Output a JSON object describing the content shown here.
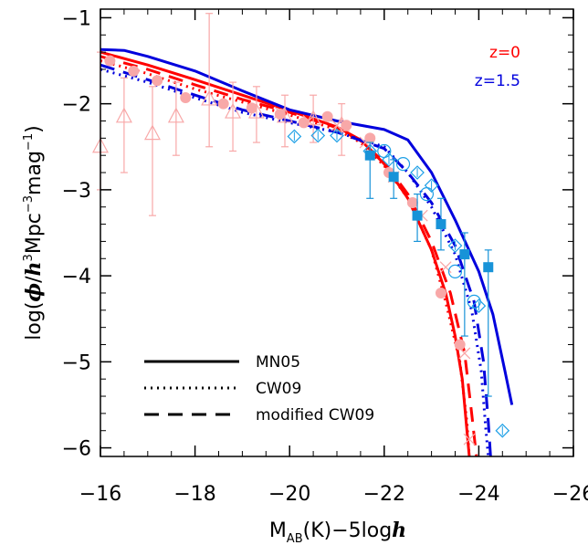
{
  "chart_data": {
    "type": "line",
    "xlabel_parts": {
      "base": "M",
      "sub": "AB",
      "rest": "(K)−5log",
      "italic": "h"
    },
    "ylabel_parts": {
      "pre": "log(",
      "phi": "ϕ",
      "slash": "/",
      "h": "h",
      "mid": "Mpc",
      "mag": "mag",
      "close": ")"
    },
    "xlim": [
      -16,
      -26
    ],
    "ylim": [
      -6.1,
      -0.9
    ],
    "xticks": [
      -16,
      -18,
      -20,
      -22,
      -24,
      -26
    ],
    "yticks": [
      -1,
      -2,
      -3,
      -4,
      -5,
      -6
    ],
    "xtick_labels": [
      "−16",
      "−18",
      "−20",
      "−22",
      "−24",
      "−26"
    ],
    "ytick_labels": [
      "−1",
      "−2",
      "−3",
      "−4",
      "−5",
      "−6"
    ],
    "redshift_labels": [
      {
        "text": "z=0",
        "color": "#ff0000"
      },
      {
        "text": "z=1.5",
        "color": "#0000dd"
      }
    ],
    "legend": [
      {
        "label": "MN05",
        "style": "solid"
      },
      {
        "label": "CW09",
        "style": "dotted"
      },
      {
        "label": "modified CW09",
        "style": "dashed"
      }
    ],
    "colors": {
      "z0_model": "#ff0000",
      "z15_model": "#0000dd",
      "z0_obs": "#f8a8a8",
      "z15_obs": "#1fa0e6",
      "z15_obs_dark": "#1893d8"
    },
    "series": [
      {
        "z": "0",
        "model": "MN05",
        "style": "solid",
        "x": [
          -16,
          -17,
          -18,
          -19,
          -20,
          -21,
          -21.5,
          -22,
          -22.5,
          -23,
          -23.3,
          -23.5,
          -23.65,
          -23.75,
          -23.8
        ],
        "y": [
          -1.4,
          -1.55,
          -1.72,
          -1.9,
          -2.08,
          -2.27,
          -2.42,
          -2.7,
          -3.1,
          -3.7,
          -4.2,
          -4.7,
          -5.2,
          -5.8,
          -6.1
        ]
      },
      {
        "z": "0",
        "model": "CW09",
        "style": "dotted",
        "x": [
          -16,
          -17,
          -18,
          -19,
          -20,
          -21,
          -21.5,
          -22,
          -22.5,
          -23,
          -23.3,
          -23.6,
          -23.75,
          -23.8
        ],
        "y": [
          -1.5,
          -1.65,
          -1.83,
          -1.98,
          -2.13,
          -2.3,
          -2.45,
          -2.72,
          -3.1,
          -3.7,
          -4.3,
          -5.0,
          -5.7,
          -6.1
        ]
      },
      {
        "z": "0",
        "model": "modified CW09",
        "style": "dashed",
        "x": [
          -16,
          -17,
          -18,
          -19,
          -20,
          -21,
          -21.5,
          -22,
          -22.5,
          -23,
          -23.4,
          -23.7,
          -23.85,
          -23.95
        ],
        "y": [
          -1.45,
          -1.6,
          -1.78,
          -1.95,
          -2.1,
          -2.28,
          -2.43,
          -2.68,
          -3.05,
          -3.6,
          -4.2,
          -4.9,
          -5.6,
          -6.1
        ]
      },
      {
        "z": "1.5",
        "model": "MN05",
        "style": "solid",
        "x": [
          -16,
          -16.5,
          -17,
          -18,
          -19,
          -20,
          -21,
          -22,
          -22.5,
          -23,
          -23.5,
          -24,
          -24.3,
          -24.55,
          -24.7
        ],
        "y": [
          -1.37,
          -1.38,
          -1.45,
          -1.62,
          -1.85,
          -2.07,
          -2.2,
          -2.3,
          -2.42,
          -2.8,
          -3.35,
          -3.95,
          -4.45,
          -5.1,
          -5.5
        ]
      },
      {
        "z": "1.5",
        "model": "CW09",
        "style": "dotted",
        "x": [
          -16,
          -17,
          -18,
          -19,
          -20,
          -21,
          -22,
          -22.5,
          -23,
          -23.5,
          -23.85,
          -24.05,
          -24.15,
          -24.2
        ],
        "y": [
          -1.6,
          -1.75,
          -1.93,
          -2.1,
          -2.22,
          -2.33,
          -2.5,
          -2.8,
          -3.2,
          -3.75,
          -4.4,
          -5.1,
          -5.8,
          -6.1
        ]
      },
      {
        "z": "1.5",
        "model": "modified CW09",
        "style": "dashed",
        "x": [
          -16,
          -17,
          -18,
          -19,
          -20,
          -21,
          -22,
          -22.5,
          -23,
          -23.5,
          -23.9,
          -24.1,
          -24.2,
          -24.25
        ],
        "y": [
          -1.55,
          -1.72,
          -1.9,
          -2.07,
          -2.2,
          -2.33,
          -2.52,
          -2.8,
          -3.15,
          -3.65,
          -4.3,
          -5.0,
          -5.7,
          -6.1
        ]
      }
    ],
    "obs_z0_circles": [
      {
        "x": -16.2,
        "y": -1.5
      },
      {
        "x": -16.7,
        "y": -1.62
      },
      {
        "x": -17.2,
        "y": -1.73
      },
      {
        "x": -17.8,
        "y": -1.93
      },
      {
        "x": -18.6,
        "y": -2.0
      },
      {
        "x": -19.2,
        "y": -2.05
      },
      {
        "x": -19.8,
        "y": -2.12
      },
      {
        "x": -20.3,
        "y": -2.22
      },
      {
        "x": -20.8,
        "y": -2.15
      },
      {
        "x": -21.2,
        "y": -2.25
      },
      {
        "x": -21.7,
        "y": -2.4
      },
      {
        "x": -22.1,
        "y": -2.8
      },
      {
        "x": -22.6,
        "y": -3.15
      },
      {
        "x": -23.2,
        "y": -4.2
      },
      {
        "x": -23.6,
        "y": -4.8
      }
    ],
    "obs_z0_triangles": [
      {
        "x": -16.0,
        "y": -2.5,
        "lo": -3.0,
        "hi": -1.4
      },
      {
        "x": -16.5,
        "y": -2.15,
        "lo": -2.8,
        "hi": -1.7
      },
      {
        "x": -17.1,
        "y": -2.35,
        "lo": -3.3,
        "hi": -1.8
      },
      {
        "x": -17.6,
        "y": -2.15,
        "lo": -2.6,
        "hi": -1.75
      },
      {
        "x": -18.3,
        "y": -1.95,
        "lo": -2.5,
        "hi": -0.95
      },
      {
        "x": -18.8,
        "y": -2.1,
        "lo": -2.55,
        "hi": -1.75
      },
      {
        "x": -19.3,
        "y": -2.1,
        "lo": -2.45,
        "hi": -1.8
      },
      {
        "x": -19.9,
        "y": -2.15,
        "lo": -2.5,
        "hi": -1.9
      },
      {
        "x": -20.5,
        "y": -2.18,
        "lo": -2.45,
        "hi": -1.9
      },
      {
        "x": -21.1,
        "y": -2.25,
        "lo": -2.6,
        "hi": -2.0
      }
    ],
    "obs_z0_crosses": [
      {
        "x": -19.8,
        "y": -2.1
      },
      {
        "x": -20.4,
        "y": -2.2
      },
      {
        "x": -21.0,
        "y": -2.25
      },
      {
        "x": -21.6,
        "y": -2.45
      },
      {
        "x": -22.2,
        "y": -2.85
      },
      {
        "x": -22.8,
        "y": -3.3
      },
      {
        "x": -23.3,
        "y": -3.9
      },
      {
        "x": -23.7,
        "y": -4.9
      },
      {
        "x": -23.8,
        "y": -5.9
      }
    ],
    "obs_z15_squares": [
      {
        "x": -21.7,
        "y": -2.6,
        "lo": -3.1,
        "hi": -2.45
      },
      {
        "x": -22.2,
        "y": -2.85,
        "lo": -3.1,
        "hi": -2.65
      },
      {
        "x": -22.7,
        "y": -3.3,
        "lo": -3.6,
        "hi": -3.05
      },
      {
        "x": -23.2,
        "y": -3.4,
        "lo": -3.7,
        "hi": -3.1
      },
      {
        "x": -23.7,
        "y": -3.75,
        "lo": -4.7,
        "hi": -3.5
      },
      {
        "x": -24.2,
        "y": -3.9,
        "lo": -5.4,
        "hi": -3.7
      }
    ],
    "obs_z15_circles": [
      {
        "x": -22.0,
        "y": -2.55
      },
      {
        "x": -22.4,
        "y": -2.7
      },
      {
        "x": -22.9,
        "y": -3.05
      },
      {
        "x": -23.5,
        "y": -3.95
      },
      {
        "x": -23.9,
        "y": -4.3
      }
    ],
    "obs_z15_diamonds": [
      {
        "x": -20.1,
        "y": -2.38
      },
      {
        "x": -20.6,
        "y": -2.37
      },
      {
        "x": -21.0,
        "y": -2.37
      },
      {
        "x": -21.7,
        "y": -2.55
      },
      {
        "x": -22.1,
        "y": -2.65
      },
      {
        "x": -22.7,
        "y": -2.8
      },
      {
        "x": -23.0,
        "y": -2.95
      },
      {
        "x": -23.5,
        "y": -3.65
      },
      {
        "x": -24.0,
        "y": -4.35
      },
      {
        "x": -24.5,
        "y": -5.8
      }
    ]
  }
}
